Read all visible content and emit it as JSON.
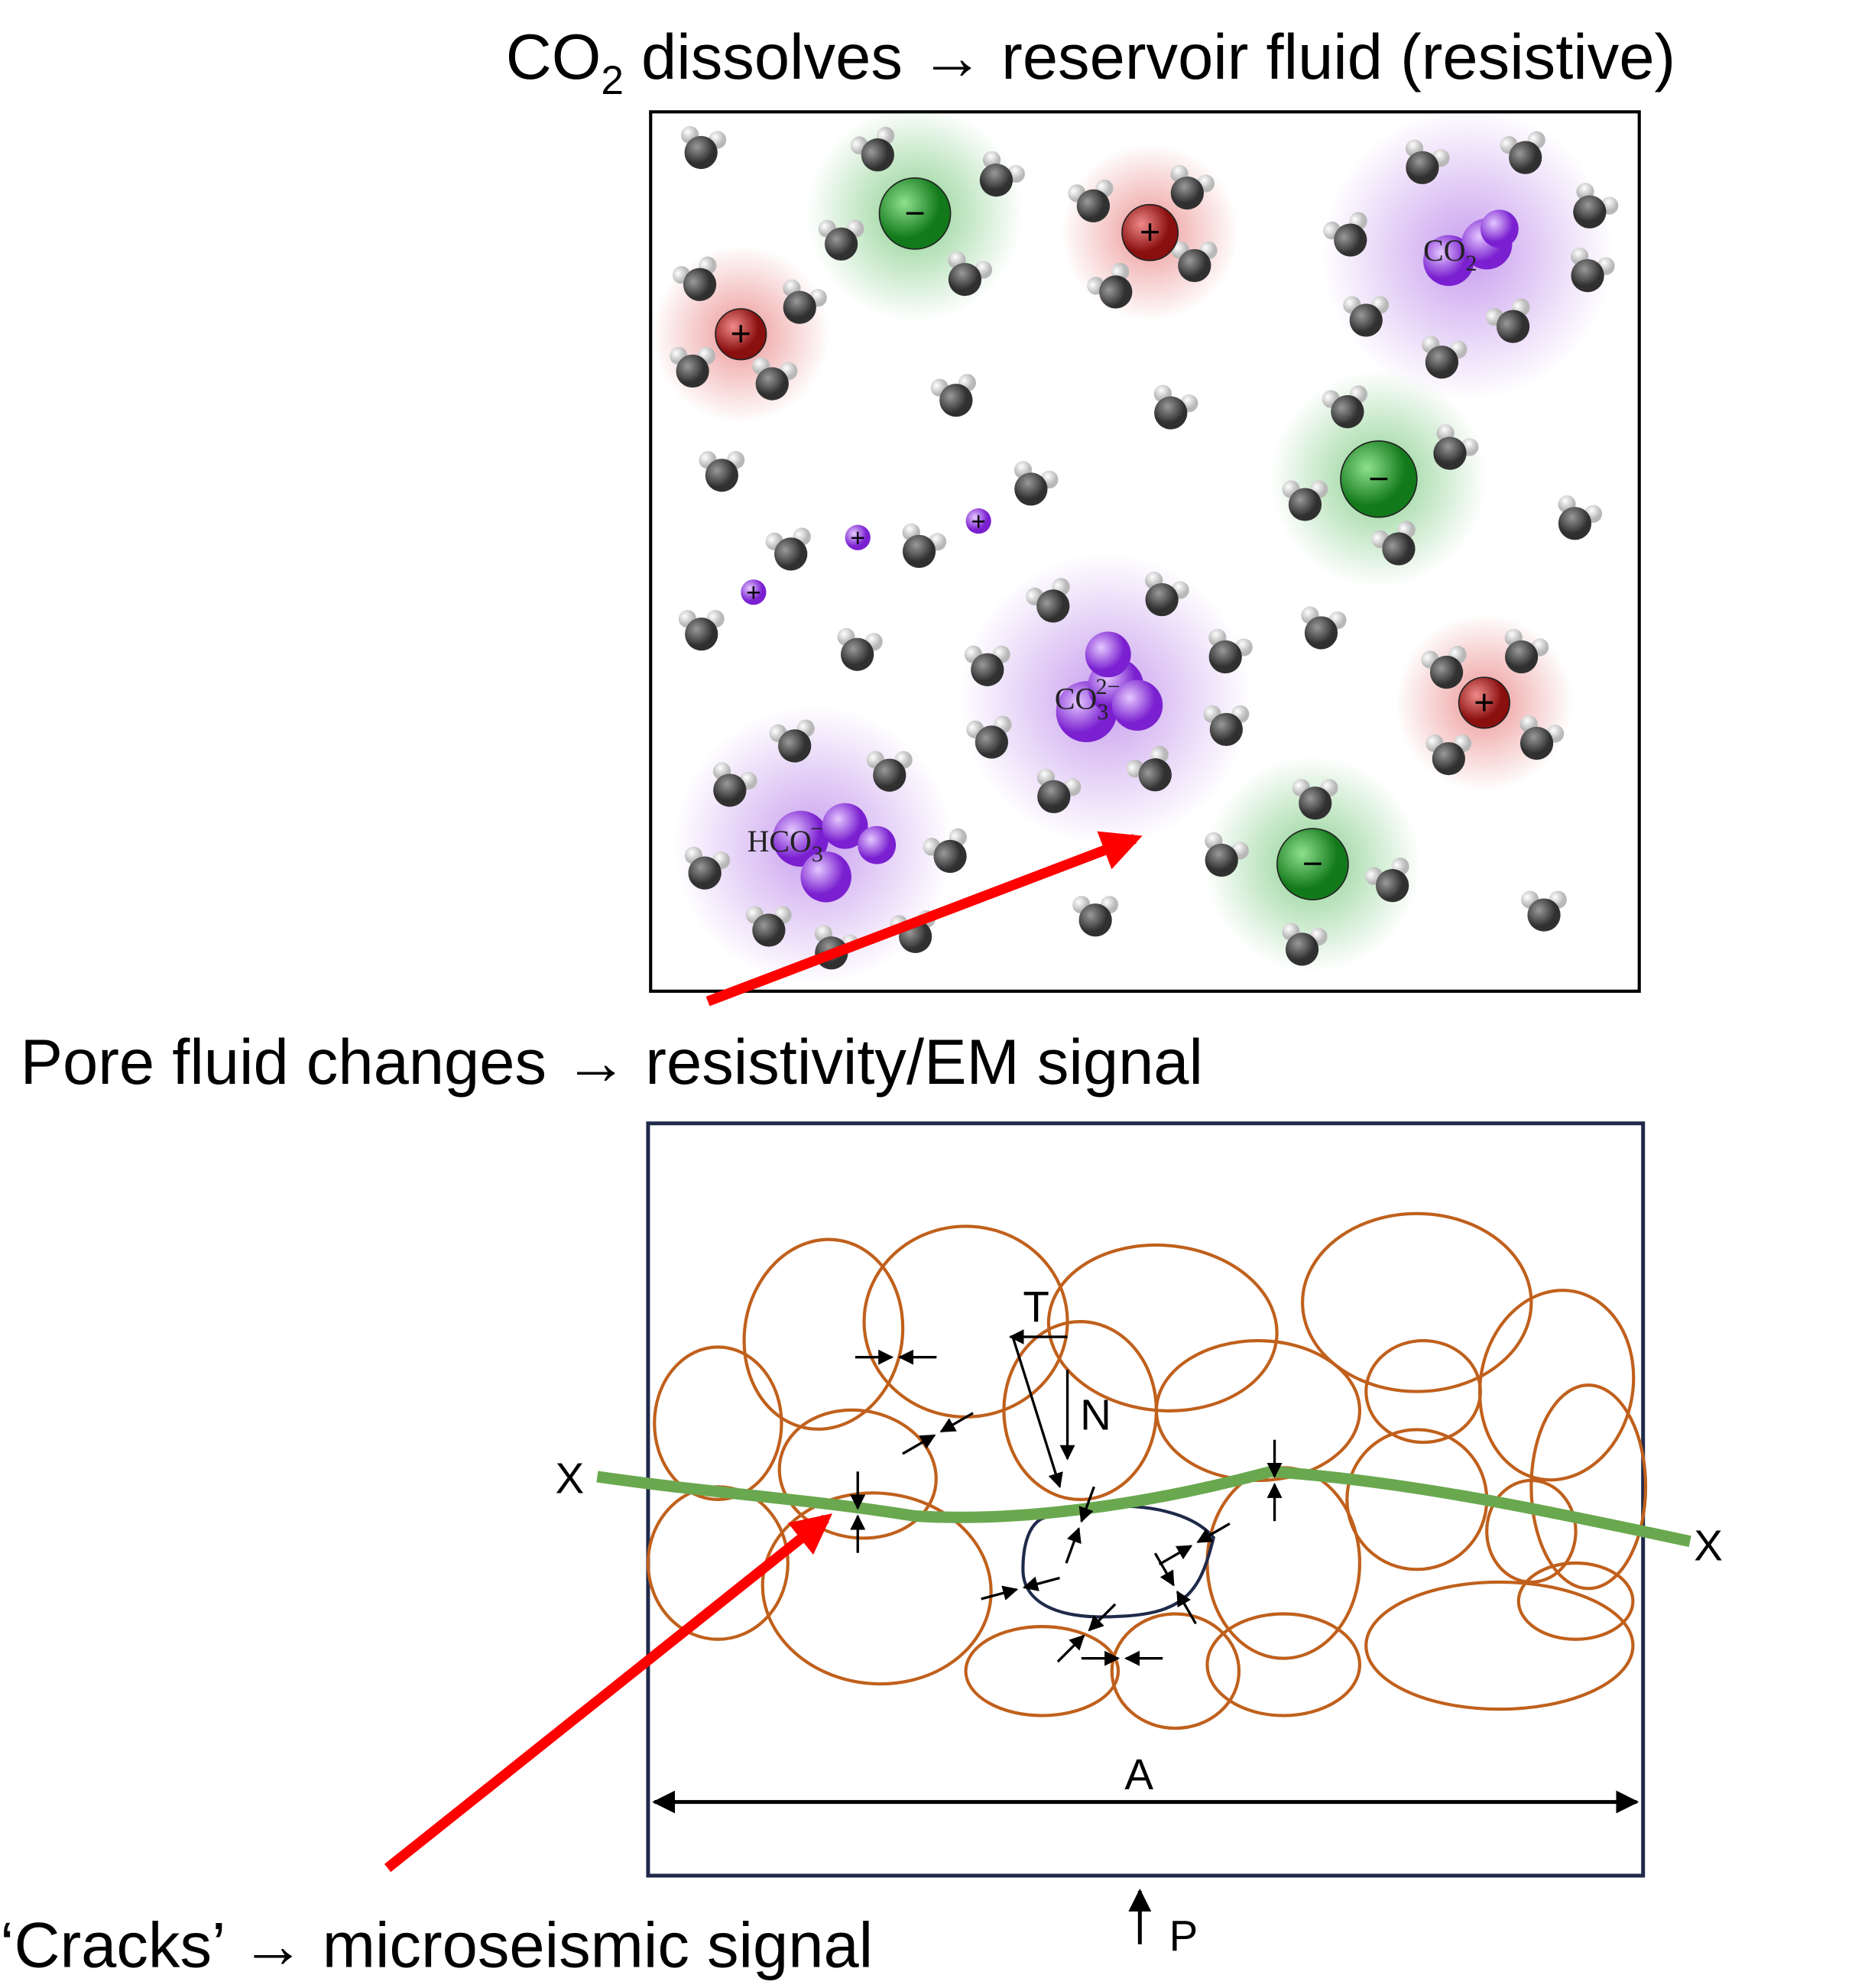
{
  "top_caption": {
    "main": "CO",
    "sub": "2",
    "rest": " dissolves → reservoir fluid (resistive)"
  },
  "middle_caption": "Pore fluid changes → resistivity/EM signal",
  "bottom_caption": "‘Cracks’ → microseismic signal",
  "charges": {
    "plus": "+",
    "minus": "−"
  },
  "molecules": {
    "co2": {
      "main": "CO",
      "sub": "2"
    },
    "co3": {
      "main": "CO",
      "sub": "3",
      "sup": "2−"
    },
    "hco3": {
      "main": "HCO",
      "sub": "3",
      "sup": "−"
    }
  },
  "grain_labels": {
    "x_left": "X",
    "x_right": "X",
    "t": "T",
    "n": "N",
    "a": "A",
    "p": "P"
  }
}
